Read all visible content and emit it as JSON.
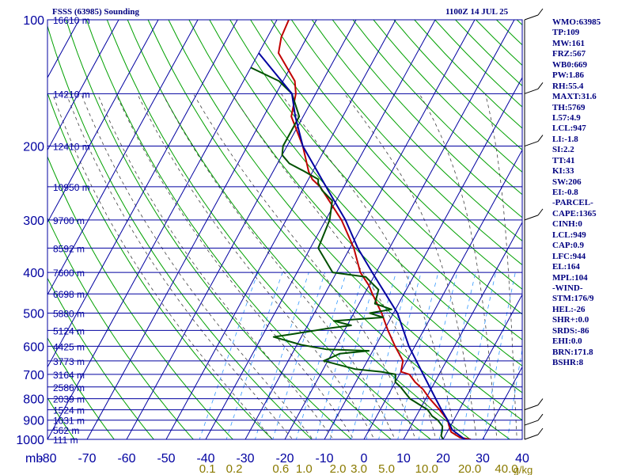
{
  "chart_data": {
    "type": "line",
    "title": "FSSS (63985) Sounding",
    "time": "1100Z 14 JUL 25",
    "x_axis_prefix": "mb",
    "y_scale": "log",
    "xlim": [
      -80,
      40
    ],
    "ylim": [
      1000,
      100
    ],
    "pressure_ticks": [
      100,
      200,
      300,
      400,
      500,
      600,
      700,
      800,
      900,
      1000
    ],
    "temp_ticks": [
      -80,
      -70,
      -60,
      -50,
      -40,
      -30,
      -20,
      -10,
      0,
      10,
      20,
      30,
      40
    ],
    "temp_tick_labels": [
      "-80",
      "-70",
      "-60",
      "-50",
      "-40",
      "-30",
      "-20",
      "-10",
      "0",
      "10",
      "20",
      "30",
      "40"
    ],
    "mixing_ratio_labels": [
      {
        "value": 0.1,
        "label": "0.1"
      },
      {
        "value": 0.2,
        "label": "0.2"
      },
      {
        "value": 0.6,
        "label": "0.6"
      },
      {
        "value": 1.0,
        "label": "1.0"
      },
      {
        "value": 2.0,
        "label": "2.0"
      },
      {
        "value": 3.0,
        "label": "3.0"
      },
      {
        "value": 5.0,
        "label": "5.0"
      },
      {
        "value": 10.0,
        "label": "10.0"
      },
      {
        "value": 20.0,
        "label": "20.0"
      },
      {
        "value": 40.0,
        "label": "40.0"
      }
    ],
    "mixing_ratio_unit": "g/kg",
    "height_labels": [
      {
        "p": 100,
        "label": "16610 m"
      },
      {
        "p": 150,
        "label": "14210 m"
      },
      {
        "p": 200,
        "label": "12410 m"
      },
      {
        "p": 250,
        "label": "10950 m"
      },
      {
        "p": 300,
        "label": "9700 m"
      },
      {
        "p": 350,
        "label": "8592 m"
      },
      {
        "p": 400,
        "label": "7600 m"
      },
      {
        "p": 450,
        "label": "6698 m"
      },
      {
        "p": 500,
        "label": "5880 m"
      },
      {
        "p": 550,
        "label": "5124 m"
      },
      {
        "p": 600,
        "label": "4425 m"
      },
      {
        "p": 650,
        "label": "3773 m"
      },
      {
        "p": 700,
        "label": "3164 m"
      },
      {
        "p": 750,
        "label": "2586 m"
      },
      {
        "p": 800,
        "label": "2039 m"
      },
      {
        "p": 850,
        "label": "1524 m"
      },
      {
        "p": 900,
        "label": "1031 m"
      },
      {
        "p": 950,
        "label": "562 m"
      },
      {
        "p": 1000,
        "label": "111 m"
      }
    ],
    "series": [
      {
        "name": "temperature",
        "color": "#c00000",
        "points": [
          [
            1000,
            27.0
          ],
          [
            990,
            24.0
          ],
          [
            960,
            21.0
          ],
          [
            925,
            19.5
          ],
          [
            900,
            18.5
          ],
          [
            850,
            15.0
          ],
          [
            800,
            11.0
          ],
          [
            760,
            8.0
          ],
          [
            730,
            5.0
          ],
          [
            700,
            2.5
          ],
          [
            690,
            0.0
          ],
          [
            650,
            -1.0
          ],
          [
            600,
            -5.0
          ],
          [
            550,
            -9.0
          ],
          [
            500,
            -13.0
          ],
          [
            450,
            -18.0
          ],
          [
            430,
            -20.0
          ],
          [
            400,
            -24.0
          ],
          [
            350,
            -29.0
          ],
          [
            300,
            -36.0
          ],
          [
            250,
            -46.0
          ],
          [
            240,
            -49.0
          ],
          [
            230,
            -51.0
          ],
          [
            200,
            -56.0
          ],
          [
            170,
            -63.0
          ],
          [
            150,
            -65.0
          ],
          [
            140,
            -67.0
          ],
          [
            120,
            -75.0
          ],
          [
            110,
            -76.5
          ],
          [
            100,
            -77.0
          ]
        ]
      },
      {
        "name": "dewpoint",
        "color": "#005000",
        "points": [
          [
            1000,
            20.0
          ],
          [
            980,
            19.0
          ],
          [
            950,
            18.5
          ],
          [
            930,
            18.0
          ],
          [
            900,
            16.0
          ],
          [
            880,
            14.0
          ],
          [
            850,
            12.0
          ],
          [
            800,
            6.0
          ],
          [
            750,
            2.0
          ],
          [
            730,
            0.0
          ],
          [
            700,
            -1.0
          ],
          [
            690,
            -5.0
          ],
          [
            680,
            -12.0
          ],
          [
            650,
            -21.0
          ],
          [
            625,
            -18.0
          ],
          [
            615,
            -11.0
          ],
          [
            610,
            -22.0
          ],
          [
            595,
            -29.0
          ],
          [
            570,
            -37.0
          ],
          [
            560,
            -32.0
          ],
          [
            545,
            -25.0
          ],
          [
            535,
            -19.0
          ],
          [
            522,
            -24.0
          ],
          [
            512,
            -12.0
          ],
          [
            500,
            -16.0
          ],
          [
            490,
            -11.0
          ],
          [
            475,
            -16.0
          ],
          [
            440,
            -17.0
          ],
          [
            410,
            -22.0
          ],
          [
            400,
            -31.0
          ],
          [
            350,
            -38.0
          ],
          [
            300,
            -39.0
          ],
          [
            270,
            -41.0
          ],
          [
            255,
            -45.0
          ],
          [
            245,
            -47.0
          ],
          [
            240,
            -47.5
          ],
          [
            230,
            -52.0
          ],
          [
            220,
            -57.0
          ],
          [
            210,
            -60.0
          ],
          [
            200,
            -61.0
          ],
          [
            170,
            -61.0
          ],
          [
            150,
            -66.0
          ],
          [
            140,
            -71.0
          ],
          [
            130,
            -80.0
          ]
        ]
      },
      {
        "name": "parcel",
        "color": "#0000a0",
        "points": [
          [
            1000,
            25.5
          ],
          [
            949,
            21.0
          ],
          [
            900,
            18.5
          ],
          [
            850,
            15.5
          ],
          [
            800,
            12.5
          ],
          [
            700,
            6.0
          ],
          [
            600,
            -1.5
          ],
          [
            500,
            -9.0
          ],
          [
            400,
            -21.0
          ],
          [
            350,
            -28.0
          ],
          [
            300,
            -35.0
          ],
          [
            250,
            -44.5
          ],
          [
            200,
            -56.0
          ],
          [
            170,
            -62.0
          ],
          [
            150,
            -66.0
          ],
          [
            130,
            -75.0
          ],
          [
            120,
            -80.0
          ]
        ]
      }
    ],
    "wind_barbs": [
      {
        "p": 100
      },
      {
        "p": 150
      },
      {
        "p": 200
      },
      {
        "p": 300
      },
      {
        "p": 850
      },
      {
        "p": 925
      },
      {
        "p": 1000
      }
    ]
  },
  "stats": [
    "WMO:63985",
    "TP:109",
    "MW:161",
    "FRZ:567",
    "WB0:669",
    "PW:1.86",
    "RH:55.4",
    "MAXT:31.6",
    "TH:5769",
    "L57:4.9",
    "LCL:947",
    "LI:-1.8",
    "SI:2.2",
    "TT:41",
    "KI:33",
    "SW:206",
    "EI:-0.8",
    "-PARCEL-",
    "CAPE:1365",
    "CINH:0",
    "LCL:949",
    "CAP:0.9",
    "LFC:944",
    "EL:164",
    "MPL:104",
    "-WIND-",
    "STM:176/9",
    "HEL:-26",
    "SHR+:0.0",
    "SRDS:-86",
    "EHI:0.0",
    "BRN:171.8",
    "BSHR:8"
  ],
  "colors": {
    "grid": "#0000a0",
    "dry_adiabat": "#00a000",
    "moist_adiabat": "#404040",
    "mixing_ratio": "#3399ff",
    "text": "#000080"
  }
}
